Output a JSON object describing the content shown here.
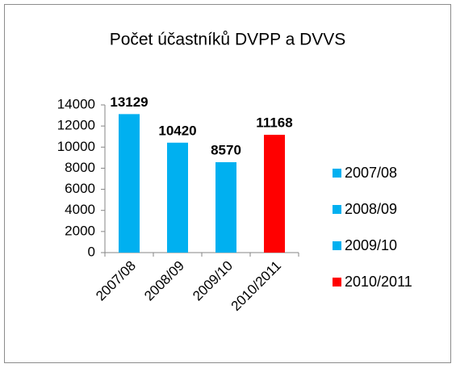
{
  "chart_data": {
    "type": "bar",
    "title": "Počet účastníků DVPP a DVVS",
    "categories": [
      "2007/08",
      "2008/09",
      "2009/10",
      "2010/2011"
    ],
    "values": [
      13129,
      10420,
      8570,
      11168
    ],
    "colors": [
      "#00b0f0",
      "#00b0f0",
      "#00b0f0",
      "#ff0000"
    ],
    "ylim": [
      0,
      14000
    ],
    "yticks": [
      0,
      2000,
      4000,
      6000,
      8000,
      10000,
      12000,
      14000
    ],
    "grid": false,
    "legend": "right"
  }
}
